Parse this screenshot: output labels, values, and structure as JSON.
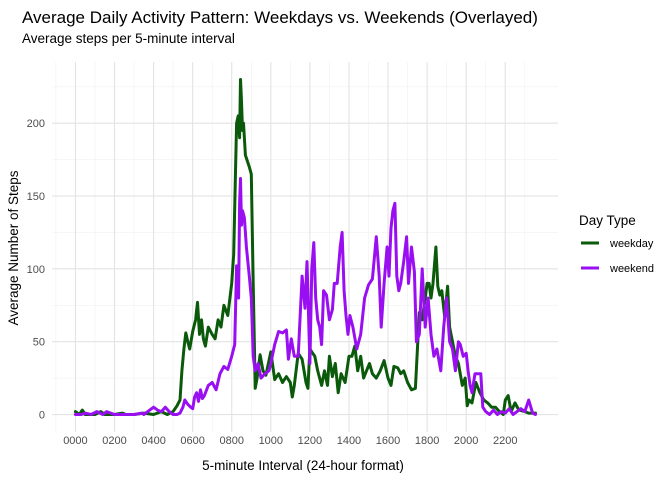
{
  "chart_data": {
    "type": "line",
    "title": "Average Daily Activity Pattern: Weekdays vs. Weekends (Overlayed)",
    "subtitle": "Average steps per 5-minute interval",
    "xlabel": "5-minute Interval (24-hour format)",
    "ylabel": "Average Number of Steps",
    "xlim": [
      -120,
      2470
    ],
    "ylim": [
      -12,
      242
    ],
    "x_ticks": [
      0,
      200,
      400,
      600,
      800,
      1000,
      1200,
      1400,
      1600,
      1800,
      2000,
      2200
    ],
    "x_tick_labels": [
      "0000",
      "0200",
      "0400",
      "0600",
      "0800",
      "1000",
      "1200",
      "1400",
      "1600",
      "1800",
      "2000",
      "2200"
    ],
    "y_ticks": [
      0,
      50,
      100,
      150,
      200
    ],
    "y_tick_labels": [
      "0",
      "50",
      "100",
      "150",
      "200"
    ],
    "grid": true,
    "legend": {
      "title": "Day Type",
      "placement": "right",
      "entries": [
        "weekday",
        "weekend"
      ]
    },
    "series": [
      {
        "name": "weekday",
        "color": "#0b5a0b",
        "points": [
          [
            0,
            2
          ],
          [
            20,
            0
          ],
          [
            35,
            3
          ],
          [
            50,
            0
          ],
          [
            100,
            0
          ],
          [
            130,
            2
          ],
          [
            150,
            0
          ],
          [
            200,
            0
          ],
          [
            240,
            1
          ],
          [
            260,
            0
          ],
          [
            300,
            0
          ],
          [
            350,
            1
          ],
          [
            400,
            0
          ],
          [
            440,
            2
          ],
          [
            470,
            0
          ],
          [
            500,
            2
          ],
          [
            520,
            6
          ],
          [
            535,
            10
          ],
          [
            545,
            30
          ],
          [
            555,
            45
          ],
          [
            565,
            56
          ],
          [
            575,
            50
          ],
          [
            585,
            45
          ],
          [
            600,
            57
          ],
          [
            615,
            65
          ],
          [
            625,
            77
          ],
          [
            635,
            55
          ],
          [
            645,
            65
          ],
          [
            655,
            52
          ],
          [
            665,
            47
          ],
          [
            680,
            60
          ],
          [
            700,
            55
          ],
          [
            715,
            52
          ],
          [
            730,
            65
          ],
          [
            745,
            60
          ],
          [
            760,
            75
          ],
          [
            780,
            68
          ],
          [
            800,
            90
          ],
          [
            810,
            110
          ],
          [
            820,
            170
          ],
          [
            825,
            200
          ],
          [
            833,
            205
          ],
          [
            840,
            190
          ],
          [
            845,
            230
          ],
          [
            850,
            215
          ],
          [
            855,
            195
          ],
          [
            860,
            200
          ],
          [
            870,
            178
          ],
          [
            890,
            170
          ],
          [
            900,
            165
          ],
          [
            910,
            90
          ],
          [
            920,
            18
          ],
          [
            930,
            25
          ],
          [
            945,
            41
          ],
          [
            960,
            30
          ],
          [
            975,
            27
          ],
          [
            1000,
            43
          ],
          [
            1020,
            24
          ],
          [
            1040,
            28
          ],
          [
            1060,
            22
          ],
          [
            1080,
            26
          ],
          [
            1100,
            22
          ],
          [
            1110,
            12
          ],
          [
            1120,
            20
          ],
          [
            1140,
            42
          ],
          [
            1160,
            38
          ],
          [
            1180,
            22
          ],
          [
            1190,
            18
          ],
          [
            1200,
            45
          ],
          [
            1210,
            43
          ],
          [
            1225,
            40
          ],
          [
            1240,
            30
          ],
          [
            1260,
            20
          ],
          [
            1275,
            30
          ],
          [
            1290,
            20
          ],
          [
            1300,
            40
          ],
          [
            1315,
            26
          ],
          [
            1330,
            35
          ],
          [
            1345,
            15
          ],
          [
            1360,
            28
          ],
          [
            1380,
            22
          ],
          [
            1400,
            40
          ],
          [
            1415,
            40
          ],
          [
            1430,
            47
          ],
          [
            1445,
            30
          ],
          [
            1460,
            40
          ],
          [
            1475,
            25
          ],
          [
            1490,
            30
          ],
          [
            1505,
            35
          ],
          [
            1520,
            28
          ],
          [
            1540,
            25
          ],
          [
            1560,
            30
          ],
          [
            1580,
            37
          ],
          [
            1600,
            25
          ],
          [
            1615,
            20
          ],
          [
            1630,
            33
          ],
          [
            1650,
            32
          ],
          [
            1665,
            28
          ],
          [
            1680,
            30
          ],
          [
            1700,
            22
          ],
          [
            1720,
            17
          ],
          [
            1740,
            18
          ],
          [
            1760,
            70
          ],
          [
            1775,
            65
          ],
          [
            1790,
            80
          ],
          [
            1800,
            90
          ],
          [
            1810,
            90
          ],
          [
            1820,
            80
          ],
          [
            1830,
            90
          ],
          [
            1845,
            115
          ],
          [
            1855,
            88
          ],
          [
            1865,
            82
          ],
          [
            1875,
            85
          ],
          [
            1890,
            67
          ],
          [
            1905,
            88
          ],
          [
            1915,
            60
          ],
          [
            1930,
            50
          ],
          [
            1945,
            40
          ],
          [
            1960,
            35
          ],
          [
            1980,
            20
          ],
          [
            1995,
            25
          ],
          [
            2005,
            6
          ],
          [
            2015,
            10
          ],
          [
            2030,
            8
          ],
          [
            2050,
            22
          ],
          [
            2070,
            15
          ],
          [
            2090,
            10
          ],
          [
            2110,
            8
          ],
          [
            2130,
            5
          ],
          [
            2150,
            5
          ],
          [
            2170,
            2
          ],
          [
            2190,
            0
          ],
          [
            2200,
            10
          ],
          [
            2215,
            13
          ],
          [
            2230,
            2
          ],
          [
            2250,
            8
          ],
          [
            2270,
            3
          ],
          [
            2300,
            2
          ],
          [
            2320,
            1
          ],
          [
            2355,
            1
          ]
        ]
      },
      {
        "name": "weekend",
        "color": "#9a0ff2",
        "points": [
          [
            0,
            0
          ],
          [
            30,
            0
          ],
          [
            50,
            1
          ],
          [
            80,
            0
          ],
          [
            110,
            2
          ],
          [
            140,
            0
          ],
          [
            160,
            2
          ],
          [
            200,
            0
          ],
          [
            300,
            0
          ],
          [
            340,
            1
          ],
          [
            350,
            0
          ],
          [
            380,
            3
          ],
          [
            400,
            5
          ],
          [
            420,
            3
          ],
          [
            440,
            2
          ],
          [
            460,
            5
          ],
          [
            480,
            2
          ],
          [
            500,
            0
          ],
          [
            520,
            0
          ],
          [
            535,
            1
          ],
          [
            550,
            5
          ],
          [
            560,
            10
          ],
          [
            575,
            7
          ],
          [
            590,
            5
          ],
          [
            600,
            4
          ],
          [
            610,
            12
          ],
          [
            620,
            15
          ],
          [
            630,
            9
          ],
          [
            640,
            17
          ],
          [
            650,
            11
          ],
          [
            660,
            13
          ],
          [
            680,
            20
          ],
          [
            700,
            22
          ],
          [
            720,
            17
          ],
          [
            740,
            28
          ],
          [
            760,
            33
          ],
          [
            780,
            31
          ],
          [
            800,
            40
          ],
          [
            815,
            48
          ],
          [
            825,
            102
          ],
          [
            835,
            80
          ],
          [
            840,
            145
          ],
          [
            845,
            162
          ],
          [
            850,
            130
          ],
          [
            855,
            140
          ],
          [
            865,
            135
          ],
          [
            875,
            115
          ],
          [
            890,
            95
          ],
          [
            900,
            80
          ],
          [
            910,
            40
          ],
          [
            920,
            30
          ],
          [
            935,
            35
          ],
          [
            950,
            25
          ],
          [
            970,
            28
          ],
          [
            990,
            30
          ],
          [
            1000,
            35
          ],
          [
            1020,
            48
          ],
          [
            1040,
            57
          ],
          [
            1060,
            56
          ],
          [
            1080,
            58
          ],
          [
            1090,
            38
          ],
          [
            1105,
            52
          ],
          [
            1120,
            40
          ],
          [
            1140,
            40
          ],
          [
            1160,
            95
          ],
          [
            1175,
            73
          ],
          [
            1185,
            105
          ],
          [
            1200,
            35
          ],
          [
            1210,
            100
          ],
          [
            1220,
            118
          ],
          [
            1230,
            80
          ],
          [
            1240,
            65
          ],
          [
            1250,
            60
          ],
          [
            1260,
            48
          ],
          [
            1270,
            85
          ],
          [
            1285,
            82
          ],
          [
            1300,
            65
          ],
          [
            1315,
            72
          ],
          [
            1325,
            90
          ],
          [
            1340,
            90
          ],
          [
            1355,
            115
          ],
          [
            1365,
            125
          ],
          [
            1375,
            85
          ],
          [
            1385,
            68
          ],
          [
            1395,
            55
          ],
          [
            1405,
            68
          ],
          [
            1420,
            60
          ],
          [
            1440,
            45
          ],
          [
            1460,
            55
          ],
          [
            1480,
            80
          ],
          [
            1500,
            89
          ],
          [
            1520,
            93
          ],
          [
            1540,
            122
          ],
          [
            1555,
            95
          ],
          [
            1565,
            60
          ],
          [
            1580,
            90
          ],
          [
            1595,
            115
          ],
          [
            1605,
            95
          ],
          [
            1615,
            128
          ],
          [
            1625,
            140
          ],
          [
            1635,
            145
          ],
          [
            1645,
            95
          ],
          [
            1655,
            85
          ],
          [
            1665,
            90
          ],
          [
            1680,
            105
          ],
          [
            1695,
            122
          ],
          [
            1705,
            90
          ],
          [
            1720,
            115
          ],
          [
            1735,
            98
          ],
          [
            1745,
            50
          ],
          [
            1760,
            55
          ],
          [
            1775,
            100
          ],
          [
            1790,
            60
          ],
          [
            1805,
            80
          ],
          [
            1820,
            55
          ],
          [
            1835,
            40
          ],
          [
            1850,
            45
          ],
          [
            1870,
            30
          ],
          [
            1885,
            60
          ],
          [
            1900,
            80
          ],
          [
            1915,
            50
          ],
          [
            1930,
            45
          ],
          [
            1945,
            30
          ],
          [
            1960,
            50
          ],
          [
            1970,
            48
          ],
          [
            1985,
            40
          ],
          [
            2000,
            42
          ],
          [
            2010,
            30
          ],
          [
            2020,
            20
          ],
          [
            2030,
            15
          ],
          [
            2045,
            28
          ],
          [
            2060,
            28
          ],
          [
            2075,
            28
          ],
          [
            2085,
            5
          ],
          [
            2100,
            2
          ],
          [
            2120,
            0
          ],
          [
            2140,
            3
          ],
          [
            2160,
            0
          ],
          [
            2180,
            2
          ],
          [
            2200,
            1
          ],
          [
            2220,
            4
          ],
          [
            2240,
            0
          ],
          [
            2260,
            2
          ],
          [
            2280,
            4
          ],
          [
            2300,
            2
          ],
          [
            2320,
            10
          ],
          [
            2340,
            1
          ],
          [
            2355,
            0
          ]
        ]
      }
    ]
  }
}
